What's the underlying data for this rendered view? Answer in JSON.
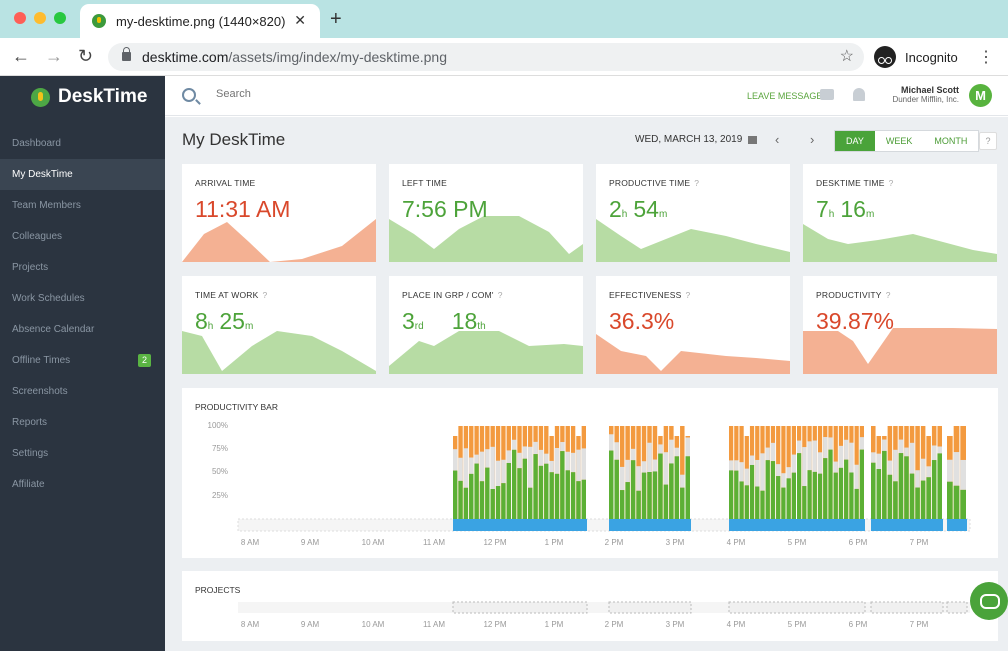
{
  "browser": {
    "tab_title": "my-desktime.png (1440×820)",
    "url_host": "desktime.com",
    "url_path": "/assets/img/index/my-desktime.png",
    "profile_label": "Incognito"
  },
  "app": {
    "brand": "DeskTime",
    "sidebar": {
      "items": [
        {
          "label": "Dashboard"
        },
        {
          "label": "My DeskTime",
          "active": true
        },
        {
          "label": "Team Members"
        },
        {
          "label": "Colleagues"
        },
        {
          "label": "Projects"
        },
        {
          "label": "Work Schedules"
        },
        {
          "label": "Absence Calendar"
        },
        {
          "label": "Offline Times",
          "badge": "2"
        },
        {
          "label": "Screenshots"
        },
        {
          "label": "Reports"
        },
        {
          "label": "Settings"
        },
        {
          "label": "Affiliate"
        }
      ]
    },
    "topbar": {
      "search_placeholder": "Search",
      "leave_message": "LEAVE MESSAGE",
      "user_name": "Michael Scott",
      "user_company": "Dunder Mifflin, Inc.",
      "avatar_initial": "M"
    },
    "header": {
      "title": "My DeskTime",
      "date": "WED, MARCH 13, 2019",
      "prev": "‹",
      "next": "›",
      "periods": [
        "DAY",
        "WEEK",
        "MONTH"
      ],
      "active_period": "DAY",
      "help": "?"
    },
    "cards": [
      {
        "label": "ARRIVAL TIME",
        "value": "11:31 AM",
        "tone": "red",
        "help": false
      },
      {
        "label": "LEFT TIME",
        "value": "7:56 PM",
        "tone": "green",
        "help": false
      },
      {
        "label": "PRODUCTIVE TIME",
        "v1": "2",
        "u1": "h",
        "v2": "54",
        "u2": "m",
        "tone": "green",
        "help": true
      },
      {
        "label": "DESKTIME TIME",
        "v1": "7",
        "u1": "h",
        "v2": "16",
        "u2": "m",
        "tone": "green",
        "help": true
      },
      {
        "label": "TIME AT WORK",
        "v1": "8",
        "u1": "h",
        "v2": "25",
        "u2": "m",
        "tone": "green",
        "help": true
      },
      {
        "label": "PLACE IN GRP / COM'",
        "v1": "3",
        "u1": "rd",
        "v2": "18",
        "u2": "th",
        "tone": "green",
        "help": true
      },
      {
        "label": "EFFECTIVENESS",
        "value": "36.3%",
        "tone": "red",
        "help": true
      },
      {
        "label": "PRODUCTIVITY",
        "value": "39.87%",
        "tone": "red",
        "help": true
      }
    ],
    "productivity_bar": {
      "title": "PRODUCTIVITY BAR",
      "y_ticks": [
        "100%",
        "75%",
        "50%",
        "25%"
      ],
      "x_ticks": [
        "8 AM",
        "9 AM",
        "10 AM",
        "11 AM",
        "12 PM",
        "1 PM",
        "2 PM",
        "3 PM",
        "4 PM",
        "5 PM",
        "6 PM",
        "7 PM"
      ]
    },
    "projects": {
      "title": "PROJECTS",
      "x_ticks": [
        "8 AM",
        "9 AM",
        "10 AM",
        "11 AM",
        "12 PM",
        "1 PM",
        "2 PM",
        "3 PM",
        "4 PM",
        "5 PM",
        "6 PM",
        "7 PM"
      ]
    }
  },
  "colors": {
    "sidebar_bg": "#2b3440",
    "accent_green": "#4da33a",
    "accent_red": "#d9482b",
    "bar_orange": "#f39a3f",
    "bar_gray": "#e0e0e0",
    "bar_green": "#5cb035",
    "timeline_blue": "#3aa3e3",
    "spark_green": "#b7dca4",
    "spark_orange": "#f4b193"
  }
}
